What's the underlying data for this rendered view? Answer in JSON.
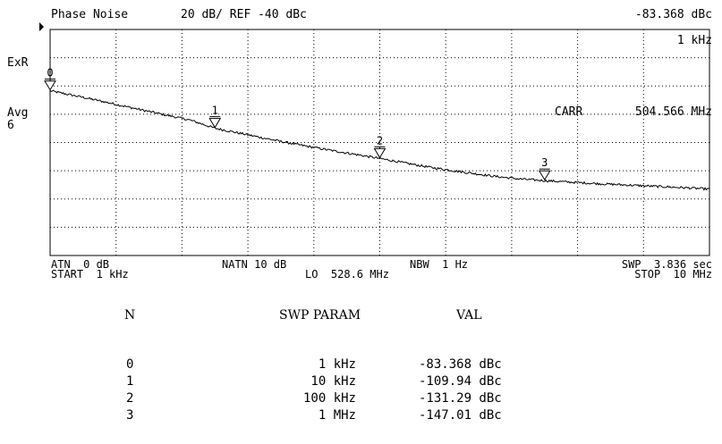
{
  "header": {
    "mode": "Phase Noise",
    "scale": "20 dB/ REF -40 dBc",
    "marker_value": "-83.368 dBc",
    "marker_freq": "1 kHz"
  },
  "left_labels": {
    "exr": "ExR",
    "avg": "Avg",
    "avg_count": "6"
  },
  "carrier": {
    "label": "CARR",
    "value": "504.566 MHz"
  },
  "footer": {
    "atn": "ATN  0 dB",
    "start": "START  1 kHz",
    "natn": "NATN 10 dB",
    "lo": "LO  528.6 MHz",
    "nbw": "NBW  1 Hz",
    "swp": "SWP  3.836 sec",
    "stop": "STOP  10 MHz"
  },
  "table": {
    "headers": {
      "n": "N",
      "param": "SWP PARAM",
      "val": "VAL"
    },
    "rows": [
      {
        "n": "0",
        "param": "1 kHz",
        "val": "-83.368 dBc"
      },
      {
        "n": "1",
        "param": "10 kHz",
        "val": "-109.94 dBc"
      },
      {
        "n": "2",
        "param": "100 kHz",
        "val": "-131.29 dBc"
      },
      {
        "n": "3",
        "param": "1 MHz",
        "val": "-147.01 dBc"
      }
    ]
  },
  "chart_data": {
    "type": "line",
    "x_scale": "log",
    "xlim_hz": [
      1000,
      10000000
    ],
    "ylim_dbc": [
      -200,
      -40
    ],
    "y_divisions_db": 20,
    "grid": true,
    "series": [
      {
        "x_hz": [
          1000,
          1500,
          2000,
          3000,
          5000,
          7000,
          10000,
          15000,
          20000,
          30000,
          50000,
          70000,
          100000,
          150000,
          200000,
          300000,
          500000,
          700000,
          1000000,
          1500000,
          2000000,
          3000000,
          5000000,
          7000000,
          10000000
        ],
        "y_dbc": [
          -83.4,
          -87.5,
          -90.5,
          -95.0,
          -100.5,
          -104.0,
          -109.9,
          -114.0,
          -117.0,
          -121.0,
          -125.5,
          -128.3,
          -131.3,
          -135.0,
          -137.5,
          -140.5,
          -144.0,
          -145.8,
          -147.0,
          -148.2,
          -149.0,
          -150.0,
          -151.2,
          -152.0,
          -153.0
        ]
      }
    ],
    "markers": [
      {
        "label": "0",
        "x_hz": 1000,
        "y_dbc": -83.368
      },
      {
        "label": "1",
        "x_hz": 10000,
        "y_dbc": -109.94
      },
      {
        "label": "2",
        "x_hz": 100000,
        "y_dbc": -131.29
      },
      {
        "label": "3",
        "x_hz": 1000000,
        "y_dbc": -147.01
      }
    ]
  }
}
